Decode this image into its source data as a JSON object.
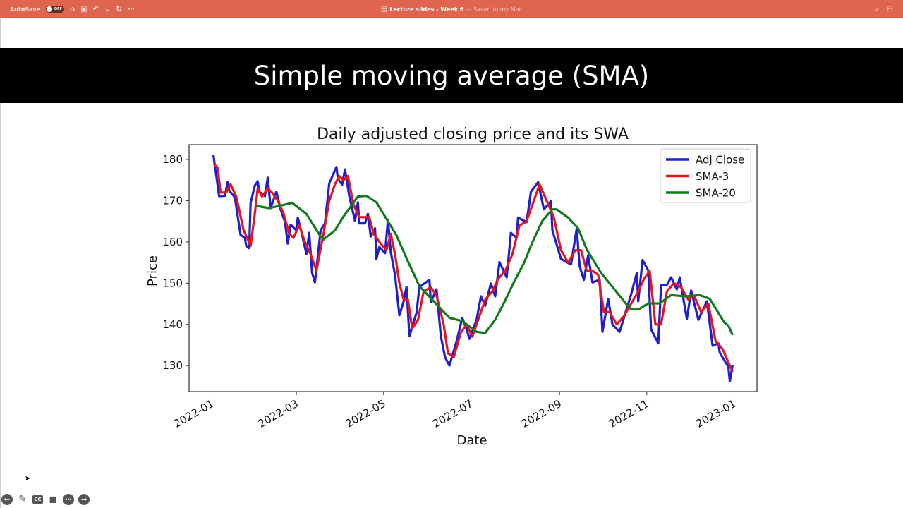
{
  "titlebar": {
    "autosave_label": "AutoSave",
    "autosave_state": "OFF",
    "document_title": "Lecture slides - Week 6",
    "save_status": "— Saved to my Mac",
    "accent_color": "#e0654f"
  },
  "slide": {
    "heading": "Simple moving average (SMA)"
  },
  "chart_data": {
    "type": "line",
    "title": "Daily adjusted closing price and its SWA",
    "xlabel": "Date",
    "ylabel": "Price",
    "xlim": [
      "2021-12-16",
      "2023-01-17"
    ],
    "ylim": [
      123.7,
      183.6
    ],
    "xticks": [
      "2022-01",
      "2022-03",
      "2022-05",
      "2022-07",
      "2022-09",
      "2022-11",
      "2023-01"
    ],
    "yticks": [
      130,
      140,
      150,
      160,
      170,
      180
    ],
    "grid": false,
    "legend_position": "top-right",
    "series": [
      {
        "name": "Adj Close",
        "color": "#1f1fd0",
        "points": [
          [
            "2022-01-02",
            181.1
          ],
          [
            "2022-01-06",
            171.1
          ],
          [
            "2022-01-10",
            171.2
          ],
          [
            "2022-01-12",
            174.5
          ],
          [
            "2022-01-13",
            172.5
          ],
          [
            "2022-01-17",
            170.8
          ],
          [
            "2022-01-21",
            161.7
          ],
          [
            "2022-01-24",
            161
          ],
          [
            "2022-01-25",
            159
          ],
          [
            "2022-01-27",
            158.5
          ],
          [
            "2022-01-28",
            169.4
          ],
          [
            "2022-01-31",
            173.7
          ],
          [
            "2022-02-02",
            174.7
          ],
          [
            "2022-02-03",
            172.2
          ],
          [
            "2022-02-07",
            171.1
          ],
          [
            "2022-02-09",
            175.6
          ],
          [
            "2022-02-11",
            168.2
          ],
          [
            "2022-02-15",
            172.2
          ],
          [
            "2022-02-18",
            167.9
          ],
          [
            "2022-02-21",
            164.8
          ],
          [
            "2022-02-23",
            159.6
          ],
          [
            "2022-02-25",
            164.2
          ],
          [
            "2022-03-01",
            162.8
          ],
          [
            "2022-03-02",
            165.9
          ],
          [
            "2022-03-05",
            161.7
          ],
          [
            "2022-03-08",
            157.1
          ],
          [
            "2022-03-10",
            162.2
          ],
          [
            "2022-03-12",
            152.5
          ],
          [
            "2022-03-14",
            150.2
          ],
          [
            "2022-03-18",
            162.8
          ],
          [
            "2022-03-21",
            164.5
          ],
          [
            "2022-03-24",
            174.2
          ],
          [
            "2022-03-29",
            178.2
          ],
          [
            "2022-03-30",
            175.3
          ],
          [
            "2022-04-02",
            173.9
          ],
          [
            "2022-04-04",
            177.6
          ],
          [
            "2022-04-07",
            171.1
          ],
          [
            "2022-04-11",
            165.1
          ],
          [
            "2022-04-13",
            169.6
          ],
          [
            "2022-04-14",
            164.5
          ],
          [
            "2022-04-18",
            164.5
          ],
          [
            "2022-04-20",
            166.8
          ],
          [
            "2022-04-22",
            161.3
          ],
          [
            "2022-04-25",
            163.3
          ],
          [
            "2022-04-26",
            155.9
          ],
          [
            "2022-04-28",
            158.8
          ],
          [
            "2022-05-02",
            157.3
          ],
          [
            "2022-05-04",
            165.4
          ],
          [
            "2022-05-06",
            157.6
          ],
          [
            "2022-05-09",
            151.9
          ],
          [
            "2022-05-12",
            142.2
          ],
          [
            "2022-05-15",
            145.6
          ],
          [
            "2022-05-17",
            149.1
          ],
          [
            "2022-05-19",
            137.1
          ],
          [
            "2022-05-24",
            142.8
          ],
          [
            "2022-05-26",
            149.1
          ],
          [
            "2022-06-02",
            150.8
          ],
          [
            "2022-06-03",
            145.4
          ],
          [
            "2022-06-07",
            148.5
          ],
          [
            "2022-06-10",
            137.1
          ],
          [
            "2022-06-13",
            132
          ],
          [
            "2022-06-16",
            130
          ],
          [
            "2022-06-21",
            135.9
          ],
          [
            "2022-06-25",
            141.6
          ],
          [
            "2022-06-28",
            138.8
          ],
          [
            "2022-06-30",
            136.5
          ],
          [
            "2022-07-05",
            141.1
          ],
          [
            "2022-07-08",
            146.8
          ],
          [
            "2022-07-11",
            144.5
          ],
          [
            "2022-07-15",
            149.9
          ],
          [
            "2022-07-18",
            146.8
          ],
          [
            "2022-07-21",
            155.1
          ],
          [
            "2022-07-26",
            151.4
          ],
          [
            "2022-07-29",
            162.2
          ],
          [
            "2022-08-02",
            161
          ],
          [
            "2022-08-03",
            165.9
          ],
          [
            "2022-08-09",
            164.8
          ],
          [
            "2022-08-12",
            172.2
          ],
          [
            "2022-08-17",
            174.5
          ],
          [
            "2022-08-21",
            167.9
          ],
          [
            "2022-08-26",
            169.9
          ],
          [
            "2022-08-27",
            162.8
          ],
          [
            "2022-09-02",
            155.9
          ],
          [
            "2022-09-09",
            154.5
          ],
          [
            "2022-09-13",
            163.3
          ],
          [
            "2022-09-15",
            154.2
          ],
          [
            "2022-09-18",
            150.8
          ],
          [
            "2022-09-21",
            156.8
          ],
          [
            "2022-09-24",
            150.2
          ],
          [
            "2022-09-29",
            150.8
          ],
          [
            "2022-10-01",
            138.2
          ],
          [
            "2022-10-05",
            146.2
          ],
          [
            "2022-10-08",
            139.9
          ],
          [
            "2022-10-13",
            138.2
          ],
          [
            "2022-10-21",
            147.3
          ],
          [
            "2022-10-25",
            152.5
          ],
          [
            "2022-10-26",
            145.6
          ],
          [
            "2022-10-29",
            155.6
          ],
          [
            "2022-11-02",
            153.1
          ],
          [
            "2022-11-04",
            138.8
          ],
          [
            "2022-11-09",
            135.4
          ],
          [
            "2022-11-11",
            149.6
          ],
          [
            "2022-11-15",
            149.6
          ],
          [
            "2022-11-18",
            151.4
          ],
          [
            "2022-11-22",
            148.5
          ],
          [
            "2022-11-24",
            151.4
          ],
          [
            "2022-11-29",
            141.3
          ],
          [
            "2022-12-02",
            148.2
          ],
          [
            "2022-12-07",
            141.1
          ],
          [
            "2022-12-13",
            145.6
          ],
          [
            "2022-12-17",
            134.8
          ],
          [
            "2022-12-21",
            135.4
          ],
          [
            "2022-12-22",
            133.1
          ],
          [
            "2022-12-28",
            129.7
          ],
          [
            "2022-12-29",
            126.2
          ],
          [
            "2022-12-31",
            130.2
          ]
        ]
      },
      {
        "name": "SMA-3",
        "color": "#e8141c",
        "points": [
          [
            "2022-01-02",
            179
          ],
          [
            "2022-01-05",
            178
          ],
          [
            "2022-01-07",
            172
          ],
          [
            "2022-01-11",
            172
          ],
          [
            "2022-01-14",
            174
          ],
          [
            "2022-01-18",
            171
          ],
          [
            "2022-01-23",
            163
          ],
          [
            "2022-01-28",
            159
          ],
          [
            "2022-01-31",
            167
          ],
          [
            "2022-02-02",
            173
          ],
          [
            "2022-02-05",
            171
          ],
          [
            "2022-02-09",
            173
          ],
          [
            "2022-02-12",
            172
          ],
          [
            "2022-02-16",
            170
          ],
          [
            "2022-02-20",
            167
          ],
          [
            "2022-02-24",
            162
          ],
          [
            "2022-02-27",
            161
          ],
          [
            "2022-03-03",
            164
          ],
          [
            "2022-03-07",
            160
          ],
          [
            "2022-03-11",
            157
          ],
          [
            "2022-03-15",
            153
          ],
          [
            "2022-03-20",
            162
          ],
          [
            "2022-03-24",
            170
          ],
          [
            "2022-03-28",
            174
          ],
          [
            "2022-03-31",
            176
          ],
          [
            "2022-04-03",
            175
          ],
          [
            "2022-04-06",
            176
          ],
          [
            "2022-04-10",
            169
          ],
          [
            "2022-04-14",
            166
          ],
          [
            "2022-04-18",
            166
          ],
          [
            "2022-04-21",
            166
          ],
          [
            "2022-04-24",
            162
          ],
          [
            "2022-04-28",
            160
          ],
          [
            "2022-05-03",
            158
          ],
          [
            "2022-05-06",
            162
          ],
          [
            "2022-05-09",
            157
          ],
          [
            "2022-05-12",
            150
          ],
          [
            "2022-05-15",
            146
          ],
          [
            "2022-05-18",
            146
          ],
          [
            "2022-05-21",
            139
          ],
          [
            "2022-05-25",
            141
          ],
          [
            "2022-05-29",
            148
          ],
          [
            "2022-06-03",
            149
          ],
          [
            "2022-06-07",
            147
          ],
          [
            "2022-06-12",
            140
          ],
          [
            "2022-06-15",
            133
          ],
          [
            "2022-06-19",
            132
          ],
          [
            "2022-06-24",
            138
          ],
          [
            "2022-06-28",
            140
          ],
          [
            "2022-07-02",
            137
          ],
          [
            "2022-07-07",
            142
          ],
          [
            "2022-07-11",
            146
          ],
          [
            "2022-07-16",
            148
          ],
          [
            "2022-07-20",
            151
          ],
          [
            "2022-07-25",
            153
          ],
          [
            "2022-07-30",
            157
          ],
          [
            "2022-08-04",
            164
          ],
          [
            "2022-08-09",
            165
          ],
          [
            "2022-08-14",
            170
          ],
          [
            "2022-08-18",
            174
          ],
          [
            "2022-08-23",
            170
          ],
          [
            "2022-08-28",
            166
          ],
          [
            "2022-09-02",
            158
          ],
          [
            "2022-09-07",
            155
          ],
          [
            "2022-09-12",
            158
          ],
          [
            "2022-09-16",
            158
          ],
          [
            "2022-09-20",
            153
          ],
          [
            "2022-09-24",
            153
          ],
          [
            "2022-09-28",
            152
          ],
          [
            "2022-10-02",
            143
          ],
          [
            "2022-10-06",
            143
          ],
          [
            "2022-10-11",
            140
          ],
          [
            "2022-10-16",
            142
          ],
          [
            "2022-10-21",
            145
          ],
          [
            "2022-10-26",
            148
          ],
          [
            "2022-10-30",
            151
          ],
          [
            "2022-11-03",
            153
          ],
          [
            "2022-11-07",
            140
          ],
          [
            "2022-11-11",
            140
          ],
          [
            "2022-11-15",
            148
          ],
          [
            "2022-11-20",
            150
          ],
          [
            "2022-11-25",
            149
          ],
          [
            "2022-11-30",
            146
          ],
          [
            "2022-12-04",
            147
          ],
          [
            "2022-12-09",
            143
          ],
          [
            "2022-12-14",
            145
          ],
          [
            "2022-12-19",
            136
          ],
          [
            "2022-12-24",
            134
          ],
          [
            "2022-12-29",
            130
          ],
          [
            "2022-12-31",
            128.5
          ]
        ]
      },
      {
        "name": "SMA-20",
        "color": "#137a1e",
        "points": [
          [
            "2022-01-31",
            168.8
          ],
          [
            "2022-02-10",
            168.2
          ],
          [
            "2022-02-23",
            169.2
          ],
          [
            "2022-02-26",
            169.5
          ],
          [
            "2022-03-08",
            166.8
          ],
          [
            "2022-03-18",
            161.3
          ],
          [
            "2022-03-20",
            160.6
          ],
          [
            "2022-03-28",
            162.8
          ],
          [
            "2022-04-03",
            166.2
          ],
          [
            "2022-04-13",
            171
          ],
          [
            "2022-04-19",
            171.2
          ],
          [
            "2022-04-26",
            169.6
          ],
          [
            "2022-05-03",
            165.6
          ],
          [
            "2022-05-10",
            161.6
          ],
          [
            "2022-05-18",
            155.3
          ],
          [
            "2022-05-26",
            149.3
          ],
          [
            "2022-06-05",
            145.6
          ],
          [
            "2022-06-16",
            141.6
          ],
          [
            "2022-06-25",
            140.8
          ],
          [
            "2022-07-05",
            138.2
          ],
          [
            "2022-07-11",
            137.9
          ],
          [
            "2022-07-18",
            141.1
          ],
          [
            "2022-07-24",
            145.1
          ],
          [
            "2022-07-31",
            150.2
          ],
          [
            "2022-08-07",
            154.8
          ],
          [
            "2022-08-13",
            159.9
          ],
          [
            "2022-08-20",
            165.1
          ],
          [
            "2022-08-27",
            167.9
          ],
          [
            "2022-08-30",
            167.9
          ],
          [
            "2022-09-07",
            165.9
          ],
          [
            "2022-09-14",
            163.3
          ],
          [
            "2022-09-20",
            158.2
          ],
          [
            "2022-09-30",
            152.5
          ],
          [
            "2022-10-08",
            149.1
          ],
          [
            "2022-10-20",
            143.9
          ],
          [
            "2022-10-26",
            143.6
          ],
          [
            "2022-11-02",
            145.1
          ],
          [
            "2022-11-10",
            145.1
          ],
          [
            "2022-11-18",
            147.1
          ],
          [
            "2022-11-28",
            146.8
          ],
          [
            "2022-12-08",
            147.1
          ],
          [
            "2022-12-15",
            146.2
          ],
          [
            "2022-12-20",
            143.4
          ],
          [
            "2022-12-25",
            140.5
          ],
          [
            "2022-12-28",
            139.7
          ],
          [
            "2022-12-31",
            137.4
          ]
        ]
      }
    ]
  },
  "controls": {
    "items": [
      {
        "name": "previous-slide",
        "icon": "arrow-left-circle"
      },
      {
        "name": "pen",
        "icon": "pencil"
      },
      {
        "name": "captions",
        "icon": "cc",
        "label": "CC"
      },
      {
        "name": "camera",
        "icon": "video-off"
      },
      {
        "name": "more",
        "icon": "ellipsis-circle"
      },
      {
        "name": "next-slide",
        "icon": "arrow-right-circle"
      }
    ]
  }
}
